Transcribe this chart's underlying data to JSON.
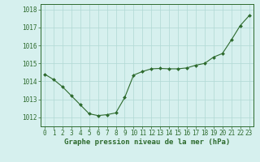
{
  "x": [
    0,
    1,
    2,
    3,
    4,
    5,
    6,
    7,
    8,
    9,
    10,
    11,
    12,
    13,
    14,
    15,
    16,
    17,
    18,
    19,
    20,
    21,
    22,
    23
  ],
  "y": [
    1014.4,
    1014.1,
    1013.7,
    1013.2,
    1012.7,
    1012.2,
    1012.1,
    1012.15,
    1012.25,
    1013.1,
    1014.35,
    1014.55,
    1014.7,
    1014.72,
    1014.7,
    1014.7,
    1014.75,
    1014.9,
    1015.0,
    1015.35,
    1015.55,
    1016.3,
    1017.1,
    1017.65
  ],
  "line_color": "#2d6a2d",
  "marker": "D",
  "marker_size": 2.0,
  "bg_color": "#d6f0ee",
  "grid_color": "#b0d8d4",
  "axis_color": "#2d6a2d",
  "xlabel": "Graphe pression niveau de la mer (hPa)",
  "xlabel_fontsize": 6.5,
  "tick_fontsize": 5.5,
  "ylim": [
    1011.5,
    1018.3
  ],
  "yticks": [
    1012,
    1013,
    1014,
    1015,
    1016,
    1017,
    1018
  ],
  "xlim": [
    -0.5,
    23.5
  ],
  "xticks": [
    0,
    1,
    2,
    3,
    4,
    5,
    6,
    7,
    8,
    9,
    10,
    11,
    12,
    13,
    14,
    15,
    16,
    17,
    18,
    19,
    20,
    21,
    22,
    23
  ]
}
